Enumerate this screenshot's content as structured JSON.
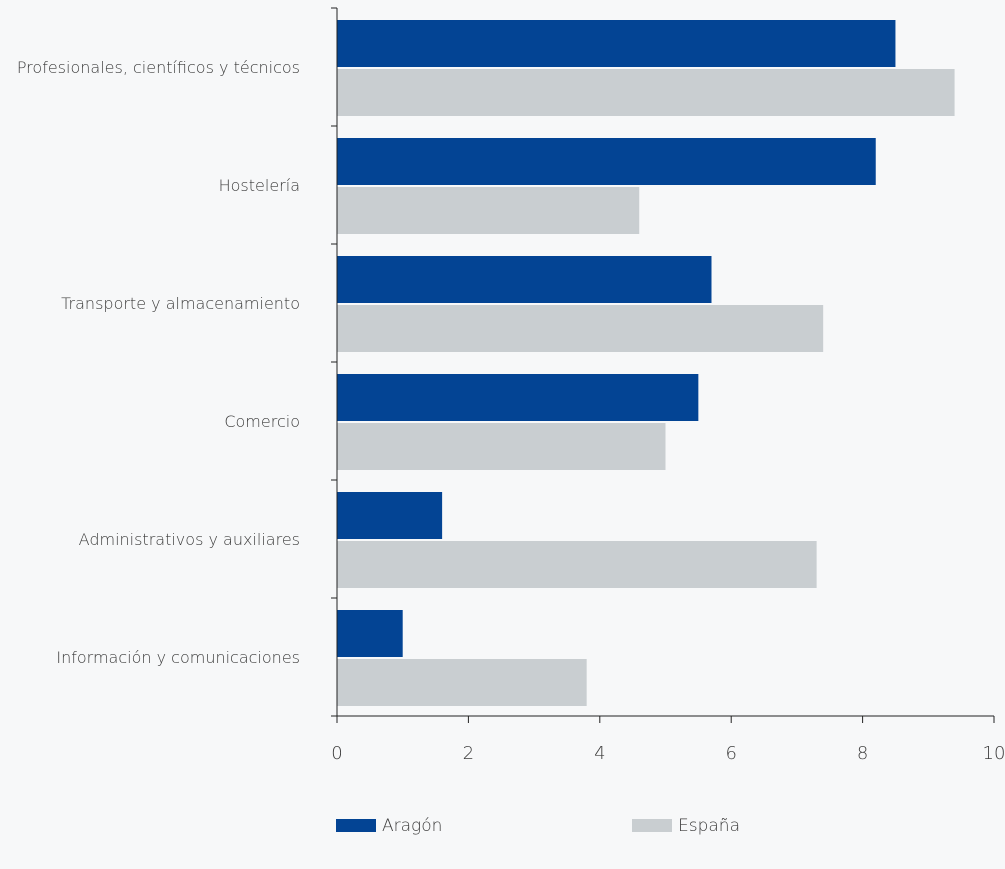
{
  "chart_data": {
    "type": "bar",
    "orientation": "horizontal",
    "categories": [
      "Profesionales, científicos y técnicos",
      "Hostelería",
      "Transporte y almacenamiento",
      "Comercio",
      "Administrativos y auxiliares",
      "Información y comunicaciones"
    ],
    "series": [
      {
        "name": "Aragón",
        "color": "#034494",
        "values": [
          8.5,
          8.2,
          5.7,
          5.5,
          1.6,
          1.0
        ]
      },
      {
        "name": "España",
        "color": "#c9ced1",
        "values": [
          9.4,
          4.6,
          7.4,
          5.0,
          7.3,
          3.8
        ]
      }
    ],
    "xlim": [
      0,
      10
    ],
    "xticks": [
      "0",
      "2",
      "4",
      "6",
      "8",
      "10"
    ],
    "grid": false,
    "legend_position": "bottom"
  }
}
